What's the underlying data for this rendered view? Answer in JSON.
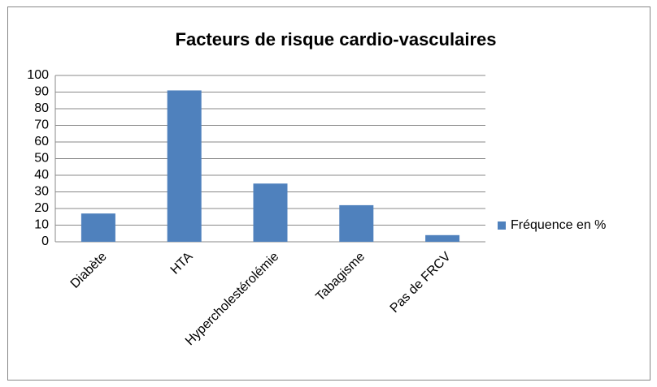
{
  "chart_data": {
    "type": "bar",
    "title": "Facteurs de risque cardio-vasculaires",
    "categories": [
      "Diabète",
      "HTA",
      "Hypercholestérolémie",
      "Tabagisme",
      "Pas de FRCV"
    ],
    "series": [
      {
        "name": "Fréquence en %",
        "color": "#4f81bd",
        "values": [
          17,
          91,
          35,
          22,
          4
        ]
      }
    ],
    "ylim": [
      0,
      100
    ],
    "yticks": [
      0,
      10,
      20,
      30,
      40,
      50,
      60,
      70,
      80,
      90,
      100
    ],
    "grid": true,
    "legend": "right"
  }
}
